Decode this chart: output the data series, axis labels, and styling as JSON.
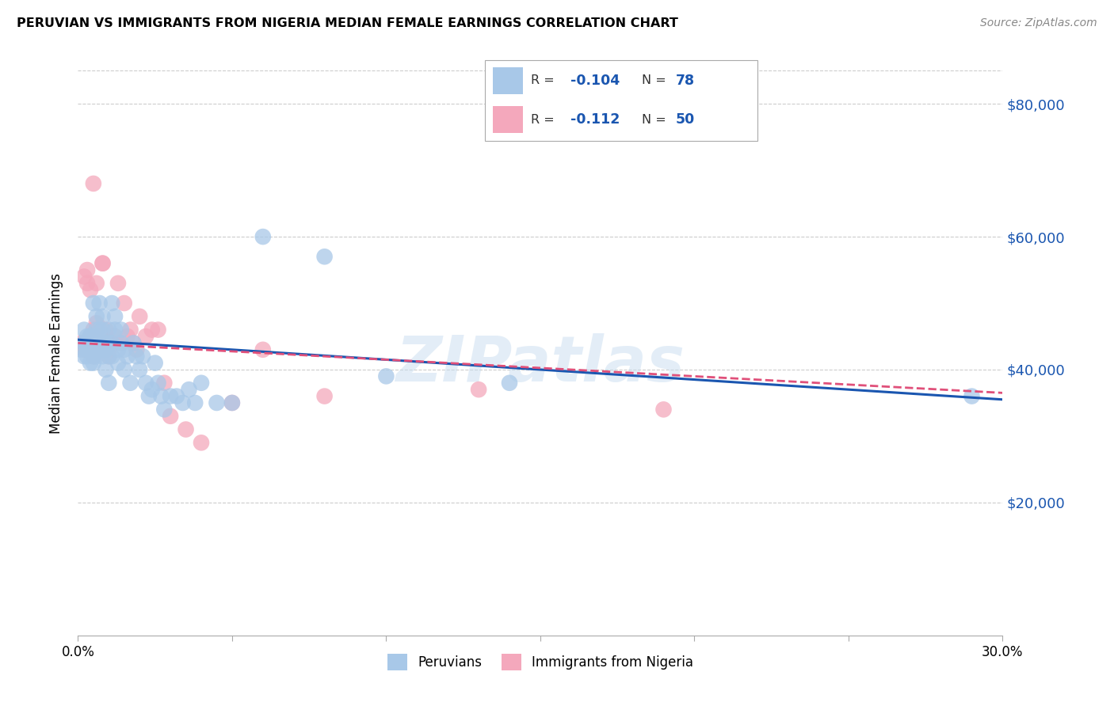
{
  "title": "PERUVIAN VS IMMIGRANTS FROM NIGERIA MEDIAN FEMALE EARNINGS CORRELATION CHART",
  "source": "Source: ZipAtlas.com",
  "ylabel": "Median Female Earnings",
  "y_ticks": [
    0,
    20000,
    40000,
    60000,
    80000
  ],
  "y_tick_labels": [
    "",
    "$20,000",
    "$40,000",
    "$60,000",
    "$80,000"
  ],
  "x_range": [
    0.0,
    0.3
  ],
  "y_range": [
    0,
    85000
  ],
  "blue_color": "#a8c8e8",
  "pink_color": "#f4a8bc",
  "blue_line_color": "#1a56b0",
  "pink_line_color": "#e0507a",
  "watermark": "ZIPatlas",
  "blue_trend": [
    44500,
    35500
  ],
  "pink_trend": [
    44000,
    36500
  ],
  "peruvians_x": [
    0.001,
    0.002,
    0.002,
    0.002,
    0.003,
    0.003,
    0.003,
    0.003,
    0.003,
    0.004,
    0.004,
    0.004,
    0.004,
    0.004,
    0.004,
    0.005,
    0.005,
    0.005,
    0.005,
    0.005,
    0.005,
    0.005,
    0.006,
    0.006,
    0.006,
    0.006,
    0.007,
    0.007,
    0.007,
    0.007,
    0.008,
    0.008,
    0.008,
    0.008,
    0.009,
    0.009,
    0.009,
    0.01,
    0.01,
    0.01,
    0.01,
    0.011,
    0.011,
    0.011,
    0.012,
    0.012,
    0.013,
    0.013,
    0.014,
    0.014,
    0.015,
    0.015,
    0.016,
    0.017,
    0.018,
    0.019,
    0.02,
    0.021,
    0.022,
    0.023,
    0.024,
    0.025,
    0.026,
    0.027,
    0.028,
    0.03,
    0.032,
    0.034,
    0.036,
    0.038,
    0.04,
    0.045,
    0.05,
    0.06,
    0.08,
    0.1,
    0.14,
    0.29
  ],
  "peruvians_y": [
    43000,
    44000,
    46000,
    42000,
    45000,
    43000,
    44000,
    42000,
    44000,
    45000,
    43000,
    41000,
    44000,
    43000,
    45000,
    44000,
    42000,
    43000,
    45000,
    41000,
    43000,
    50000,
    44000,
    42000,
    48000,
    46000,
    43000,
    50000,
    44000,
    46000,
    44000,
    42000,
    46000,
    48000,
    43000,
    40000,
    44000,
    44000,
    42000,
    46000,
    38000,
    50000,
    44000,
    42000,
    46000,
    48000,
    43000,
    41000,
    44000,
    46000,
    43000,
    40000,
    42000,
    38000,
    44000,
    42000,
    40000,
    42000,
    38000,
    36000,
    37000,
    41000,
    38000,
    36000,
    34000,
    36000,
    36000,
    35000,
    37000,
    35000,
    38000,
    35000,
    35000,
    60000,
    57000,
    39000,
    38000,
    36000
  ],
  "nigeria_x": [
    0.001,
    0.002,
    0.002,
    0.002,
    0.003,
    0.003,
    0.003,
    0.004,
    0.004,
    0.004,
    0.005,
    0.005,
    0.005,
    0.006,
    0.006,
    0.006,
    0.007,
    0.007,
    0.008,
    0.008,
    0.008,
    0.009,
    0.009,
    0.01,
    0.01,
    0.011,
    0.012,
    0.013,
    0.014,
    0.015,
    0.016,
    0.017,
    0.018,
    0.019,
    0.02,
    0.022,
    0.024,
    0.026,
    0.028,
    0.03,
    0.035,
    0.04,
    0.05,
    0.06,
    0.08,
    0.13,
    0.19,
    0.01,
    0.005,
    0.008
  ],
  "nigeria_y": [
    44000,
    43000,
    54000,
    44000,
    55000,
    43000,
    53000,
    52000,
    44000,
    45000,
    42000,
    44000,
    46000,
    53000,
    47000,
    43000,
    43000,
    45000,
    43000,
    44000,
    56000,
    46000,
    45000,
    42000,
    44000,
    44000,
    45000,
    53000,
    44000,
    50000,
    45000,
    46000,
    44000,
    43000,
    48000,
    45000,
    46000,
    46000,
    38000,
    33000,
    31000,
    29000,
    35000,
    43000,
    36000,
    37000,
    34000,
    43000,
    68000,
    56000
  ]
}
